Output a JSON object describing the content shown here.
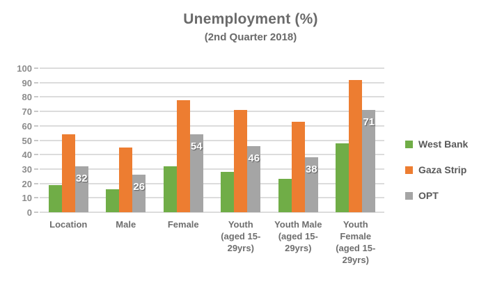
{
  "title": "Unemployment (%)",
  "subtitle": "(2nd Quarter 2018)",
  "colors": {
    "west_bank": "#70AD47",
    "gaza_strip": "#ED7D31",
    "opt": "#A5A5A5",
    "gridline": "#DCDCDC",
    "axis_text": "#8C8C8C",
    "category_text": "#6e6e6e",
    "legend_text": "#595959",
    "bar_label_text": "#FFFFFF",
    "background": "#FFFFFF"
  },
  "chart_data": {
    "type": "bar",
    "title": "Unemployment (%)",
    "subtitle": "(2nd Quarter 2018)",
    "xlabel": "",
    "ylabel": "",
    "ylim": [
      0,
      100
    ],
    "y_ticks": [
      100,
      90,
      80,
      70,
      60,
      50,
      40,
      30,
      20,
      10,
      0
    ],
    "grid": true,
    "legend_position": "right",
    "categories": [
      "Location",
      "Male",
      "Female",
      "Youth (aged 15-29yrs)",
      "Youth Male (aged 15-29yrs)",
      "Youth Female (aged 15-29yrs)"
    ],
    "category_label_lines": [
      [
        "Location"
      ],
      [
        "Male"
      ],
      [
        "Female"
      ],
      [
        "Youth",
        "(aged 15-",
        "29yrs)"
      ],
      [
        "Youth Male",
        "(aged 15-",
        "29yrs)"
      ],
      [
        "Youth",
        "Female",
        "(aged 15-",
        "29yrs)"
      ]
    ],
    "series": [
      {
        "name": "West Bank",
        "color": "#70AD47",
        "values": [
          19,
          16,
          32,
          28,
          23,
          48
        ],
        "show_labels": false
      },
      {
        "name": "Gaza Strip",
        "color": "#ED7D31",
        "values": [
          54,
          45,
          78,
          71,
          63,
          92
        ],
        "show_labels": false
      },
      {
        "name": "OPT",
        "color": "#A5A5A5",
        "values": [
          32,
          26,
          54,
          46,
          38,
          71
        ],
        "show_labels": true,
        "data_labels": [
          "32",
          "26",
          "54",
          "46",
          "38",
          "71"
        ]
      }
    ]
  }
}
